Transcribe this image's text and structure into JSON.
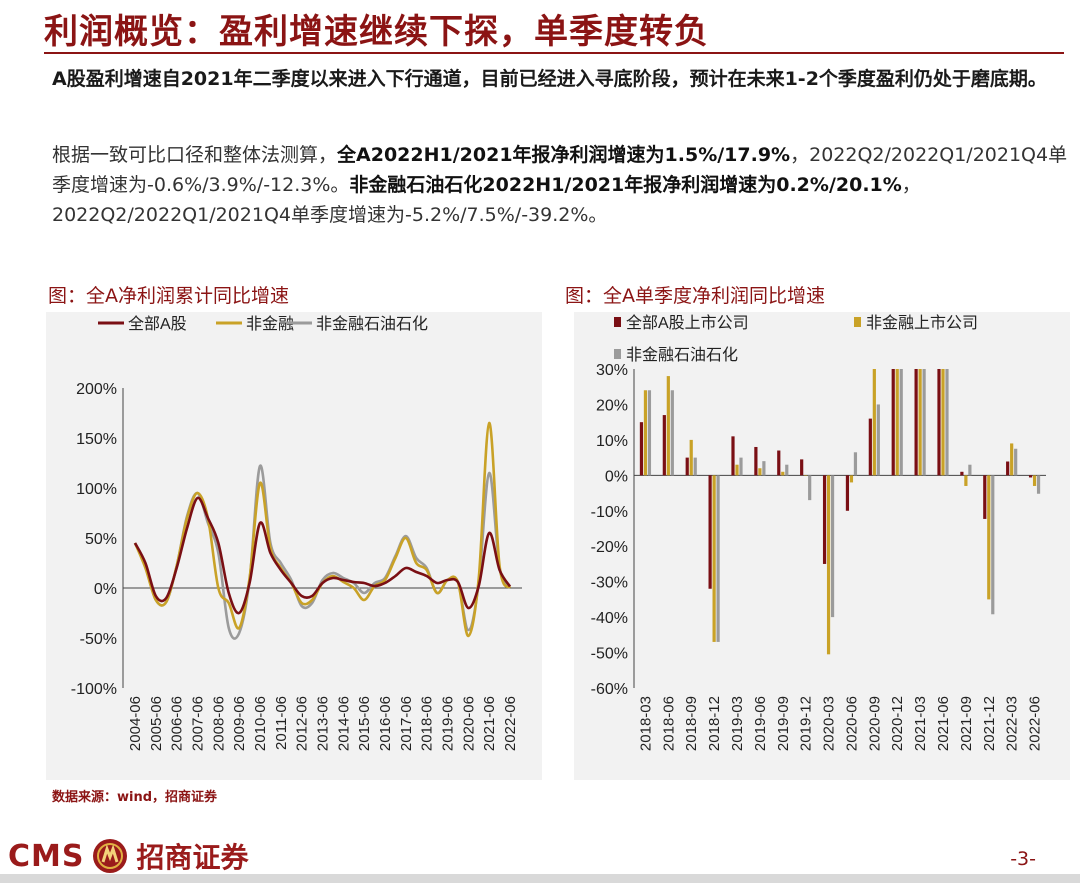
{
  "header": {
    "title": "利润概览：盈利增速继续下探，单季度转负",
    "lead": "A股盈利增速自2021年二季度以来进入下行通道，目前已经进入寻底阶段，预计在未来1-2个季度盈利仍处于磨底期。",
    "para_1": "根据一致可比口径和整体法测算，",
    "para_2": "全A2022H1/2021年报净利润增速为1.5%/17.9%",
    "para_3": "，2022Q2/2022Q1/2021Q4单季度增速为-0.6%/3.9%/-12.3%。",
    "para_4": "非金融石油石化2022H1/2021年报净利润增速为0.2%/20.1%",
    "para_5": "， 2022Q2/2022Q1/2021Q4单季度增速为-5.2%/7.5%/-39.2%。"
  },
  "left_chart": {
    "panel_title": "图：全A净利润累计同比增速"
  },
  "right_chart": {
    "panel_title": "图：全A单季度净利润同比增速"
  },
  "source_note": "数据来源：wind，招商证券",
  "footer": {
    "logo_text": "CMS",
    "logo_icon": "cms-emblem-icon",
    "company": "招商证券",
    "page": "-3-"
  },
  "colors": {
    "red": "#7a0f14",
    "gold": "#c9a227",
    "gray": "#9b9b9b",
    "accent": "#8b1414"
  },
  "chart_data": [
    {
      "type": "line",
      "title": "图：全A净利润累计同比增速",
      "x": [
        "2004-06",
        "2004-12",
        "2005-06",
        "2005-12",
        "2006-06",
        "2006-12",
        "2007-06",
        "2007-12",
        "2008-06",
        "2008-12",
        "2009-06",
        "2009-12",
        "2010-06",
        "2010-12",
        "2011-06",
        "2011-12",
        "2012-06",
        "2012-12",
        "2013-06",
        "2013-12",
        "2014-06",
        "2014-12",
        "2015-06",
        "2015-12",
        "2016-06",
        "2016-12",
        "2017-06",
        "2017-12",
        "2018-06",
        "2018-12",
        "2019-06",
        "2019-12",
        "2020-06",
        "2020-12",
        "2021-06",
        "2021-12",
        "2022-06"
      ],
      "xticks": [
        "2004-06",
        "2005-06",
        "2006-06",
        "2007-06",
        "2008-06",
        "2009-06",
        "2010-06",
        "2011-06",
        "2012-06",
        "2013-06",
        "2014-06",
        "2015-06",
        "2016-06",
        "2017-06",
        "2018-06",
        "2019-06",
        "2020-06",
        "2021-06",
        "2022-06"
      ],
      "yticks": [
        "-100%",
        "-50%",
        "0%",
        "50%",
        "100%",
        "150%",
        "200%"
      ],
      "ylim": [
        -100,
        200
      ],
      "legend_position": "top",
      "series": [
        {
          "name": "全部A股",
          "color": "#7a0f14",
          "values": [
            45,
            25,
            -8,
            -10,
            20,
            60,
            90,
            70,
            45,
            -5,
            -25,
            5,
            65,
            35,
            18,
            5,
            -8,
            -8,
            5,
            10,
            8,
            6,
            5,
            2,
            5,
            12,
            20,
            16,
            12,
            5,
            8,
            6,
            -20,
            2,
            55,
            18,
            1.5
          ]
        },
        {
          "name": "非金融",
          "color": "#c9a227",
          "values": [
            45,
            20,
            -12,
            -14,
            22,
            70,
            95,
            70,
            0,
            -15,
            -40,
            10,
            105,
            40,
            20,
            5,
            -15,
            -12,
            5,
            12,
            6,
            0,
            -12,
            2,
            8,
            30,
            50,
            25,
            18,
            -5,
            8,
            6,
            -48,
            10,
            165,
            22,
            0
          ]
        },
        {
          "name": "非金融石油石化",
          "color": "#9b9b9b",
          "values": [
            45,
            22,
            -12,
            -14,
            22,
            72,
            95,
            65,
            35,
            -40,
            -45,
            8,
            122,
            45,
            25,
            8,
            -18,
            -15,
            8,
            15,
            10,
            5,
            -5,
            5,
            10,
            32,
            52,
            30,
            20,
            -5,
            8,
            6,
            -42,
            5,
            115,
            20,
            0.2
          ]
        }
      ]
    },
    {
      "type": "bar",
      "title": "图：全A单季度净利润同比增速",
      "categories": [
        "2018-03",
        "2018-06",
        "2018-09",
        "2018-12",
        "2019-03",
        "2019-06",
        "2019-09",
        "2019-12",
        "2020-03",
        "2020-06",
        "2020-09",
        "2020-12",
        "2021-03",
        "2021-06",
        "2021-09",
        "2021-12",
        "2022-03",
        "2022-06"
      ],
      "yticks": [
        "-60%",
        "-50%",
        "-40%",
        "-30%",
        "-20%",
        "-10%",
        "0%",
        "10%",
        "20%",
        "30%"
      ],
      "ylim": [
        -60,
        30
      ],
      "legend_position": "top",
      "series": [
        {
          "name": "全部A股上市公司",
          "color": "#7a0f14",
          "values": [
            15,
            17,
            5,
            -32,
            11,
            8,
            7,
            4.5,
            -25,
            -10,
            16,
            30,
            30,
            30,
            1,
            -12.3,
            3.9,
            -0.6
          ]
        },
        {
          "name": "非金融上市公司",
          "color": "#c9a227",
          "values": [
            24,
            28,
            10,
            -47,
            3,
            2,
            1,
            0,
            -50.5,
            -2,
            30,
            30,
            30,
            30,
            -3,
            -35,
            9,
            -3
          ]
        },
        {
          "name": "非金融石油石化",
          "color": "#9b9b9b",
          "values": [
            24,
            24,
            5,
            -47,
            5,
            4,
            3,
            -7,
            -40,
            6.5,
            20,
            30,
            30,
            30,
            3,
            -39.2,
            7.5,
            -5.2
          ]
        }
      ]
    }
  ]
}
